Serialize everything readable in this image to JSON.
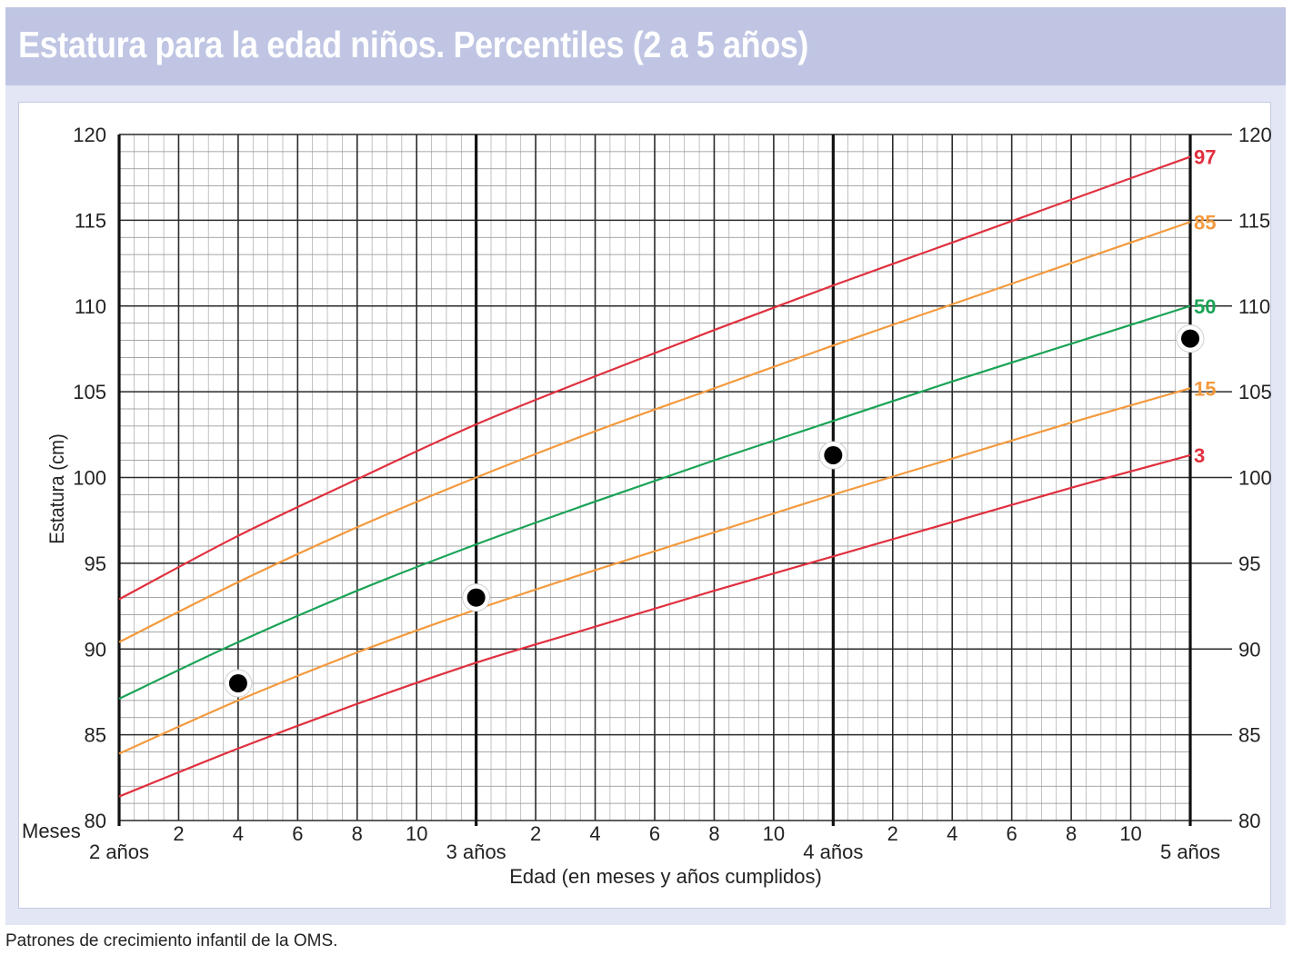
{
  "title": "Estatura para la edad niños. Percentiles (2 a 5 años)",
  "source": "Patrones de crecimiento infantil de la OMS.",
  "colors": {
    "title_bg": "#bfc5e3",
    "panel_bg": "#e3e6f4",
    "p97": "#e0303e",
    "p85": "#f39a3e",
    "p50": "#1aa356",
    "p15": "#f39a3e",
    "p3": "#e0303e"
  },
  "chart_data": {
    "type": "line",
    "title": "Estatura para la edad niños. Percentiles (2 a 5 años)",
    "xlabel": "Edad (en meses y años cumplidos)",
    "ylabel": "Estatura (cm)",
    "x_axis_prefix": "Meses",
    "x_units": "months",
    "xlim": [
      24,
      60
    ],
    "ylim": [
      80,
      120
    ],
    "y_ticks": [
      80,
      85,
      90,
      95,
      100,
      105,
      110,
      115,
      120
    ],
    "x_month_ticks": [
      {
        "x": 26,
        "label": "2"
      },
      {
        "x": 28,
        "label": "4"
      },
      {
        "x": 30,
        "label": "6"
      },
      {
        "x": 32,
        "label": "8"
      },
      {
        "x": 34,
        "label": "10"
      },
      {
        "x": 38,
        "label": "2"
      },
      {
        "x": 40,
        "label": "4"
      },
      {
        "x": 42,
        "label": "6"
      },
      {
        "x": 44,
        "label": "8"
      },
      {
        "x": 46,
        "label": "10"
      },
      {
        "x": 50,
        "label": "2"
      },
      {
        "x": 52,
        "label": "4"
      },
      {
        "x": 54,
        "label": "6"
      },
      {
        "x": 56,
        "label": "8"
      },
      {
        "x": 58,
        "label": "10"
      }
    ],
    "x_year_ticks": [
      {
        "x": 24,
        "label": "2 años"
      },
      {
        "x": 36,
        "label": "3 años"
      },
      {
        "x": 48,
        "label": "4 años"
      },
      {
        "x": 60,
        "label": "5 años"
      }
    ],
    "grid": true,
    "series": [
      {
        "name": "97",
        "color": "#e0303e",
        "x": [
          24,
          28,
          32,
          36,
          40,
          44,
          48,
          52,
          56,
          60
        ],
        "values": [
          92.9,
          96.6,
          99.9,
          103.1,
          105.9,
          108.6,
          111.2,
          113.7,
          116.2,
          118.7
        ]
      },
      {
        "name": "85",
        "color": "#f39a3e",
        "x": [
          24,
          28,
          32,
          36,
          40,
          44,
          48,
          52,
          56,
          60
        ],
        "values": [
          90.4,
          93.9,
          97.1,
          100.0,
          102.7,
          105.2,
          107.7,
          110.1,
          112.5,
          114.9
        ]
      },
      {
        "name": "50",
        "color": "#1aa356",
        "x": [
          24,
          28,
          32,
          36,
          40,
          44,
          48,
          52,
          56,
          60
        ],
        "values": [
          87.1,
          90.4,
          93.4,
          96.1,
          98.6,
          101.0,
          103.3,
          105.6,
          107.8,
          110.0
        ]
      },
      {
        "name": "15",
        "color": "#f39a3e",
        "x": [
          24,
          28,
          32,
          36,
          40,
          44,
          48,
          52,
          56,
          60
        ],
        "values": [
          83.9,
          87.0,
          89.8,
          92.3,
          94.6,
          96.8,
          99.0,
          101.1,
          103.2,
          105.2
        ]
      },
      {
        "name": "3",
        "color": "#e0303e",
        "x": [
          24,
          28,
          32,
          36,
          40,
          44,
          48,
          52,
          56,
          60
        ],
        "values": [
          81.4,
          84.2,
          86.8,
          89.2,
          91.3,
          93.4,
          95.4,
          97.4,
          99.4,
          101.3
        ]
      }
    ],
    "points": [
      {
        "x": 28,
        "y": 88.0
      },
      {
        "x": 36,
        "y": 93.0
      },
      {
        "x": 48,
        "y": 101.3
      },
      {
        "x": 60,
        "y": 108.1
      }
    ]
  }
}
